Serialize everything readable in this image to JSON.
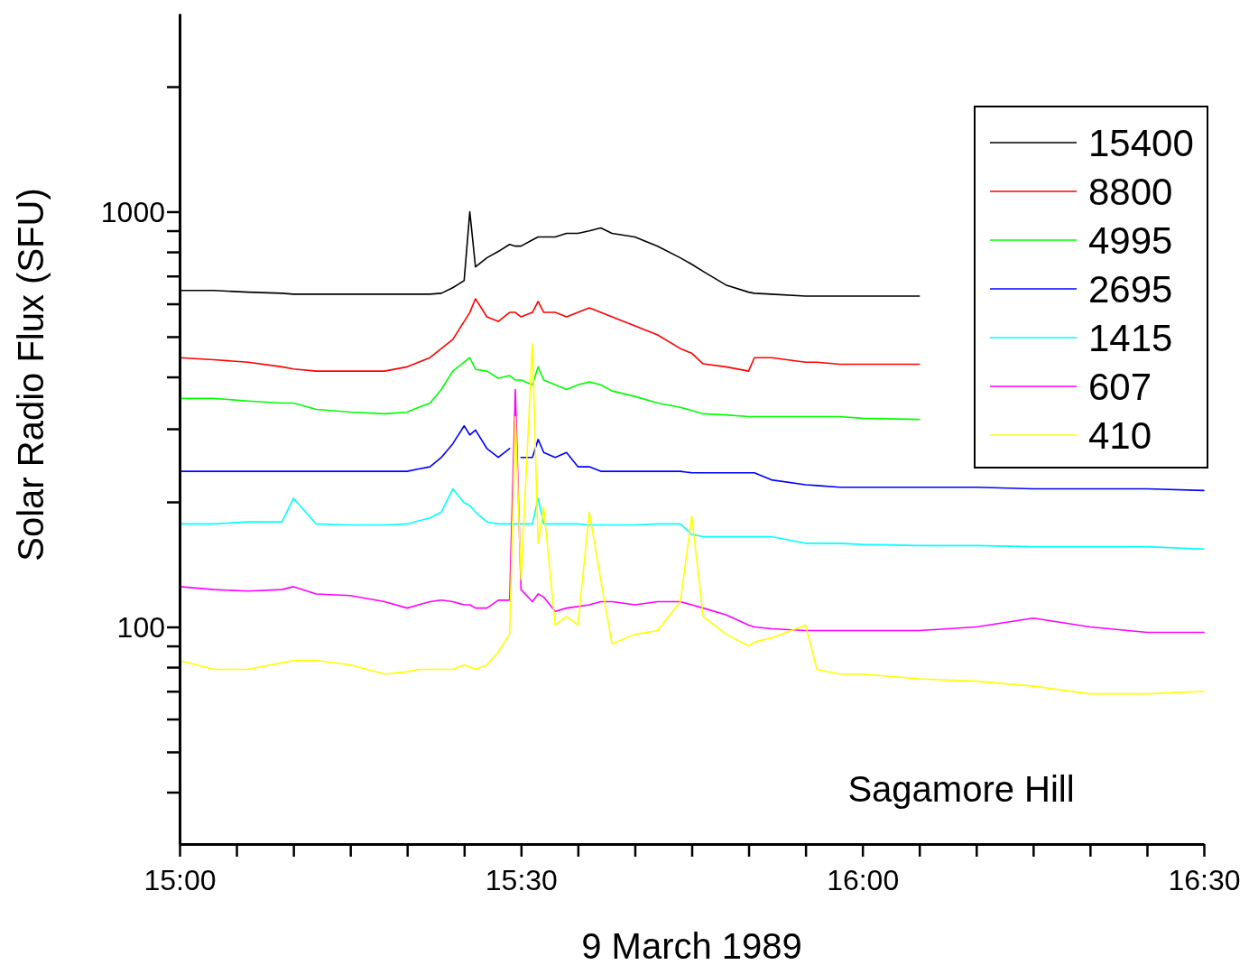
{
  "chart_data": {
    "type": "line",
    "xlabel": "9 March 1989",
    "ylabel": "Solar Radio Flux (SFU)",
    "log": "y",
    "legend": "top right",
    "x": [
      15,
      15.05,
      15.1,
      15.15,
      15.1667,
      15.2,
      15.25,
      15.3,
      15.3333,
      15.35,
      15.3667,
      15.3833,
      15.4,
      15.4167,
      15.425,
      15.4333,
      15.45,
      15.4667,
      15.4833,
      15.4917,
      15.5,
      15.5167,
      15.525,
      15.5333,
      15.55,
      15.5667,
      15.5833,
      15.6,
      15.6167,
      15.6333,
      15.6667,
      15.7,
      15.7333,
      15.75,
      15.7667,
      15.8,
      15.8333,
      15.8417,
      15.8667,
      15.9167,
      15.9333,
      15.9667,
      16,
      16.0833,
      16.1667,
      16.25,
      16.3333,
      16.4167,
      16.5
    ],
    "xlim": [
      15,
      16.5
    ],
    "xticks": [
      {
        "value": 15,
        "label": "15:00"
      },
      {
        "value": 15.0833,
        "label": null
      },
      {
        "value": 15.1667,
        "label": null
      },
      {
        "value": 15.25,
        "label": null
      },
      {
        "value": 15.3333,
        "label": null
      },
      {
        "value": 15.4167,
        "label": null
      },
      {
        "value": 15.5,
        "label": "15:30"
      },
      {
        "value": 15.5833,
        "label": null
      },
      {
        "value": 15.6667,
        "label": null
      },
      {
        "value": 15.75,
        "label": null
      },
      {
        "value": 15.8333,
        "label": null
      },
      {
        "value": 15.9167,
        "label": null
      },
      {
        "value": 16,
        "label": "16:00"
      },
      {
        "value": 16.0833,
        "label": null
      },
      {
        "value": 16.1667,
        "label": null
      },
      {
        "value": 16.25,
        "label": null
      },
      {
        "value": 16.3333,
        "label": null
      },
      {
        "value": 16.4167,
        "label": null
      },
      {
        "value": 16.5,
        "label": "16:30"
      }
    ],
    "ylim": [
      30,
      3000
    ],
    "yticks": [
      {
        "value": 40,
        "label": null
      },
      {
        "value": 50,
        "label": null
      },
      {
        "value": 60,
        "label": null
      },
      {
        "value": 70,
        "label": null
      },
      {
        "value": 80,
        "label": null
      },
      {
        "value": 90,
        "label": null
      },
      100,
      {
        "value": 200,
        "label": null
      },
      {
        "value": 300,
        "label": null
      },
      {
        "value": 400,
        "label": null
      },
      {
        "value": 500,
        "label": null
      },
      {
        "value": 600,
        "label": null
      },
      {
        "value": 700,
        "label": null
      },
      {
        "value": 800,
        "label": null
      },
      {
        "value": 900,
        "label": null
      },
      1000,
      {
        "value": 2000,
        "label": null
      }
    ],
    "annotations": [
      "Sagamore Hill"
    ],
    "series": [
      {
        "name": "15400",
        "color": "#000000",
        "values": [
          646,
          646,
          640,
          636,
          633,
          633,
          633,
          633,
          633,
          633,
          633,
          636,
          656,
          682,
          1000,
          736,
          774,
          802,
          834,
          826,
          826,
          855,
          869,
          869,
          869,
          887,
          887,
          899,
          914,
          887,
          869,
          826,
          774,
          747,
          718,
          666,
          640,
          636,
          633,
          626,
          626,
          626,
          626,
          626,
          null,
          null,
          null,
          null,
          null
        ]
      },
      {
        "name": "8800",
        "color": "#ff0000",
        "values": [
          445,
          440,
          434,
          423,
          418,
          413,
          413,
          413,
          423,
          434,
          445,
          468,
          492,
          544,
          572,
          617,
          558,
          544,
          572,
          572,
          558,
          572,
          608,
          572,
          572,
          558,
          572,
          587,
          572,
          558,
          531,
          505,
          468,
          456,
          430,
          423,
          413,
          445,
          445,
          434,
          434,
          429,
          429,
          429,
          null,
          null,
          null,
          null,
          null
        ]
      },
      {
        "name": "4995",
        "color": "#00ff00",
        "values": [
          355,
          355,
          350,
          346,
          346,
          334,
          329,
          326,
          329,
          338,
          346,
          373,
          413,
          434,
          445,
          417,
          413,
          397,
          403,
          393,
          393,
          383,
          423,
          393,
          383,
          373,
          383,
          389,
          383,
          370,
          359,
          346,
          338,
          332,
          326,
          324,
          321,
          321,
          321,
          321,
          321,
          321,
          318,
          316,
          null,
          null,
          null,
          null,
          null
        ]
      },
      {
        "name": "2695",
        "color": "#0000ff",
        "values": [
          237,
          237,
          237,
          237,
          237,
          237,
          237,
          237,
          237,
          240,
          243,
          256,
          276,
          305,
          290,
          298,
          269,
          256,
          269,
          null,
          256,
          256,
          283,
          263,
          256,
          263,
          243,
          243,
          237,
          237,
          237,
          237,
          237,
          235,
          235,
          235,
          235,
          235,
          226,
          220,
          219,
          217,
          217,
          217,
          217,
          215,
          215,
          215,
          213
        ]
      },
      {
        "name": "1415",
        "color": "#00ffff",
        "values": [
          177,
          177,
          179,
          179,
          204,
          177,
          176,
          176,
          177,
          180,
          183,
          189,
          215,
          199,
          196,
          189,
          179,
          177,
          177,
          177,
          177,
          177,
          204,
          177,
          177,
          177,
          177,
          176,
          176,
          176,
          176,
          177,
          177,
          167,
          165,
          165,
          165,
          165,
          165,
          159,
          159,
          159,
          158,
          157,
          157,
          156,
          156,
          156,
          154
        ]
      },
      {
        "name": "607",
        "color": "#ff00ff",
        "values": [
          125,
          123,
          122,
          123,
          125,
          120,
          119,
          115,
          111,
          113,
          115,
          116,
          115,
          113,
          113,
          111,
          111,
          116,
          116,
          373,
          123,
          115,
          120,
          118,
          109,
          111,
          112,
          113,
          115,
          115,
          113,
          115,
          115,
          113,
          111,
          107,
          101,
          100,
          99,
          98,
          98,
          98,
          98,
          98,
          100,
          105,
          100,
          97,
          97
        ]
      },
      {
        "name": "410",
        "color": "#ffff00",
        "values": [
          83,
          79,
          79,
          82,
          83,
          83,
          81,
          77,
          78,
          79,
          79,
          79,
          79,
          81,
          80,
          79,
          81,
          87,
          96,
          321,
          130,
          480,
          159,
          194,
          101,
          106,
          101,
          189,
          130,
          91,
          96,
          98,
          115,
          185,
          106,
          96,
          90,
          92,
          94,
          101,
          79,
          77,
          77,
          75,
          74,
          72,
          69,
          69,
          70
        ]
      }
    ]
  }
}
